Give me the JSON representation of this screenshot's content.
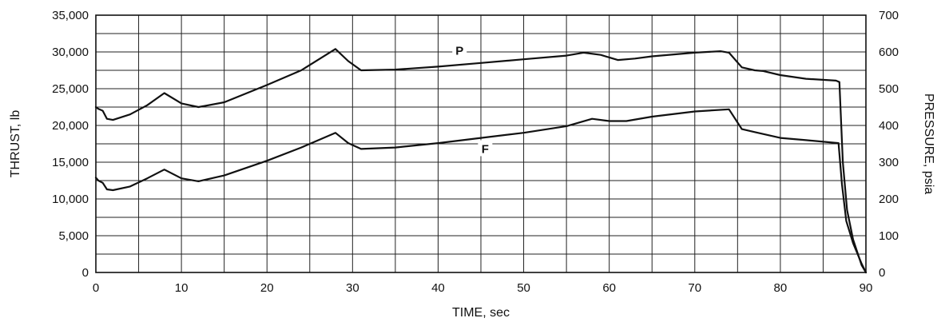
{
  "chart_data": {
    "type": "line",
    "xlabel": "TIME, sec",
    "ylabel_left": "THRUST, lb",
    "ylabel_right": "PRESSURE, psia",
    "xlim": [
      0,
      90
    ],
    "ylim_left": [
      0,
      35000
    ],
    "ylim_right": [
      0,
      700
    ],
    "x_ticks": [
      "0",
      "10",
      "20",
      "30",
      "40",
      "50",
      "60",
      "70",
      "80",
      "90"
    ],
    "y_ticks_left": [
      "0",
      "5,000",
      "10,000",
      "15,000",
      "20,000",
      "25,000",
      "30,000",
      "35,000"
    ],
    "y_ticks_right": [
      "0",
      "100",
      "200",
      "300",
      "400",
      "500",
      "600",
      "700"
    ],
    "grid": true,
    "series": [
      {
        "name": "P",
        "axis": "right",
        "x": [
          0,
          0.3,
          0.8,
          1.3,
          2,
          4,
          6,
          8,
          10,
          12,
          15,
          20,
          24,
          28,
          29.5,
          31,
          35,
          40,
          45,
          50,
          55,
          57,
          59,
          61,
          63,
          65,
          70,
          73,
          74,
          75.5,
          77,
          78,
          80,
          83,
          86.5,
          86.9,
          87.3,
          87.8,
          88.5,
          89.5,
          90
        ],
        "y": [
          450,
          445,
          440,
          418,
          415,
          430,
          455,
          488,
          460,
          450,
          463,
          510,
          550,
          608,
          575,
          550,
          552,
          560,
          570,
          580,
          590,
          598,
          592,
          578,
          582,
          588,
          598,
          602,
          598,
          558,
          550,
          548,
          537,
          527,
          522,
          518,
          300,
          170,
          90,
          20,
          0
        ]
      },
      {
        "name": "F",
        "axis": "left",
        "x": [
          0,
          0.3,
          0.8,
          1.3,
          2,
          4,
          6,
          8,
          10,
          12,
          15,
          20,
          24,
          28,
          29.5,
          31,
          35,
          40,
          45,
          50,
          55,
          58,
          60,
          62,
          65,
          70,
          74,
          75.5,
          77,
          80,
          83,
          86.8,
          87.2,
          87.7,
          88.5,
          89.5,
          90
        ],
        "y": [
          12900,
          12500,
          12200,
          11300,
          11200,
          11700,
          12800,
          14000,
          12800,
          12400,
          13200,
          15200,
          17000,
          19000,
          17600,
          16800,
          17000,
          17600,
          18300,
          19000,
          19900,
          20900,
          20600,
          20600,
          21200,
          21900,
          22200,
          19500,
          19100,
          18300,
          18000,
          17600,
          12000,
          7000,
          4000,
          1200,
          0
        ]
      }
    ],
    "annotations": [
      {
        "text": "P",
        "x": 42.5,
        "axis": "right",
        "y": 603
      },
      {
        "text": "F",
        "x": 45.5,
        "axis": "left",
        "y": 16800
      }
    ]
  }
}
